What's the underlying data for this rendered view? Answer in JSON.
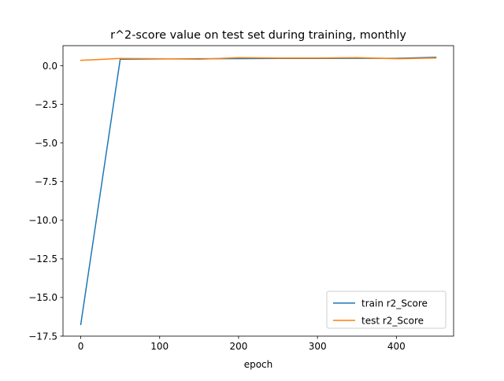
{
  "chart_data": {
    "type": "line",
    "title": "r^2-score value on test set during training, monthly",
    "xlabel": "epoch",
    "ylabel": "",
    "xlim": [
      -22.5,
      472.5
    ],
    "ylim": [
      -17.5,
      1.3
    ],
    "x_ticks": [
      0,
      100,
      200,
      300,
      400
    ],
    "x_tick_labels": [
      "0",
      "100",
      "200",
      "300",
      "400"
    ],
    "y_ticks": [
      0.0,
      -2.5,
      -5.0,
      -7.5,
      -10.0,
      -12.5,
      -15.0,
      -17.5
    ],
    "y_tick_labels": [
      "0.0",
      "−2.5",
      "−5.0",
      "−7.5",
      "−10.0",
      "−12.5",
      "−15.0",
      "−17.5"
    ],
    "grid": false,
    "legend_position": "lower-right",
    "series": [
      {
        "name": "train r2_Score",
        "color": "#1f77b4",
        "x": [
          0,
          50,
          100,
          150,
          200,
          250,
          300,
          350,
          400,
          450
        ],
        "y": [
          -16.75,
          0.42,
          0.44,
          0.45,
          0.46,
          0.47,
          0.47,
          0.48,
          0.48,
          0.55
        ]
      },
      {
        "name": "test r2_Score",
        "color": "#ff7f0e",
        "x": [
          0,
          50,
          100,
          150,
          200,
          250,
          300,
          350,
          400,
          450
        ],
        "y": [
          0.35,
          0.47,
          0.45,
          0.42,
          0.52,
          0.5,
          0.5,
          0.52,
          0.45,
          0.5
        ]
      }
    ]
  }
}
